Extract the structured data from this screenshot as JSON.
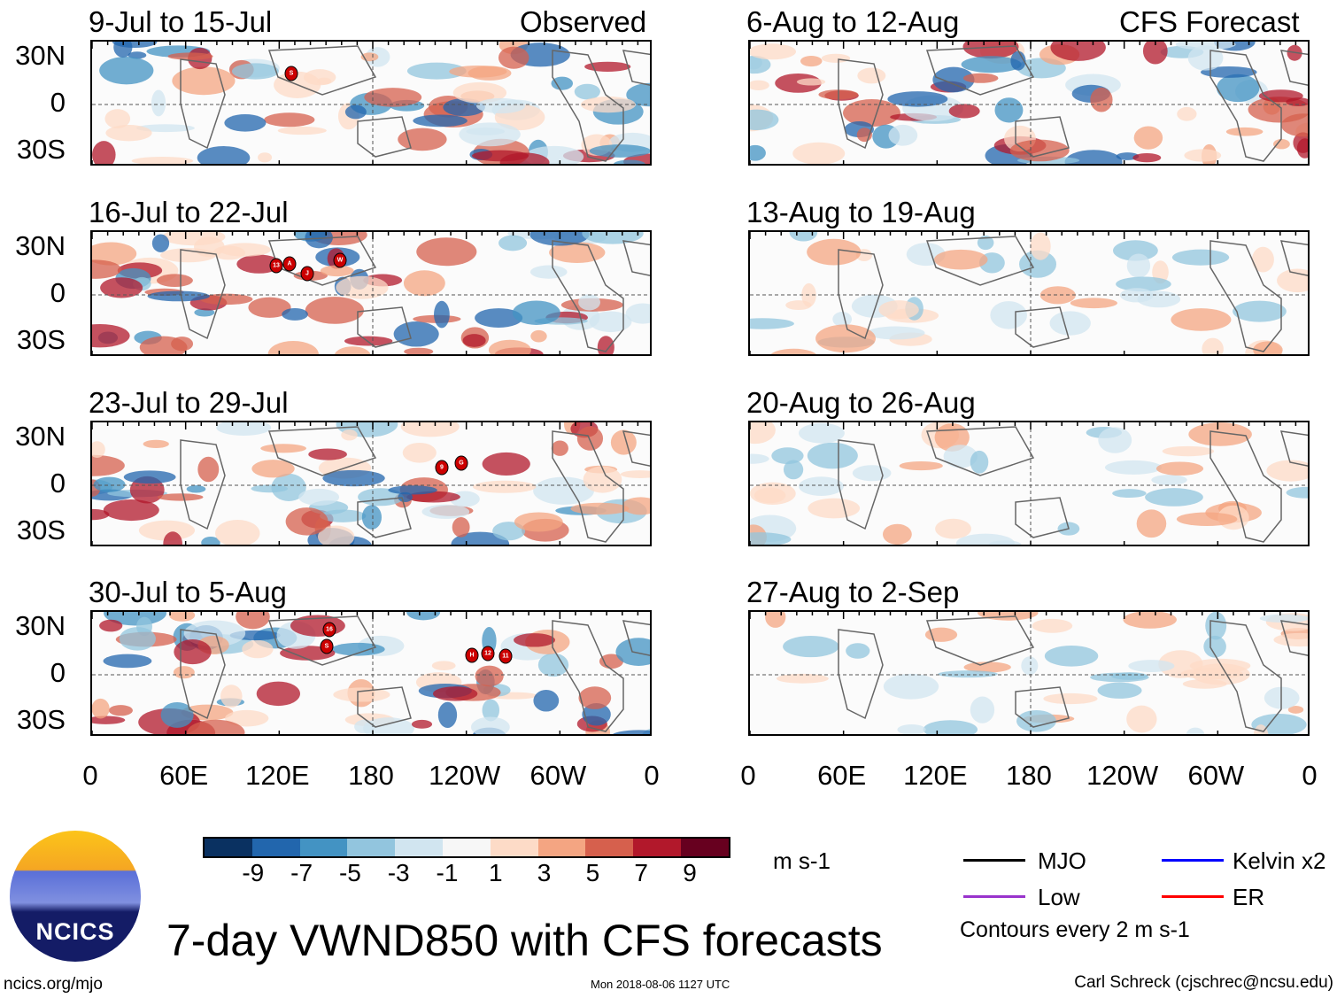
{
  "headers": {
    "observed": "Observed",
    "forecast": "CFS Forecast"
  },
  "panels": [
    {
      "title": "9-Jul to 15-Jul",
      "storms": [
        "S"
      ]
    },
    {
      "title": "16-Jul to 22-Jul",
      "storms": [
        "13",
        "A",
        "J",
        "W"
      ]
    },
    {
      "title": "23-Jul to 29-Jul",
      "storms": [
        "9",
        "G"
      ]
    },
    {
      "title": "30-Jul to 5-Aug",
      "storms": [
        "16",
        "S",
        "H",
        "12",
        "11"
      ]
    },
    {
      "title": "6-Aug to 12-Aug"
    },
    {
      "title": "13-Aug to 19-Aug"
    },
    {
      "title": "20-Aug to 26-Aug"
    },
    {
      "title": "27-Aug to 2-Sep"
    }
  ],
  "lat_labels": [
    "30N",
    "0",
    "30S"
  ],
  "lon_labels": [
    "0",
    "60E",
    "120E",
    "180",
    "120W",
    "60W",
    "0"
  ],
  "colorbar": {
    "labels": [
      "-9",
      "-7",
      "-5",
      "-3",
      "-1",
      "1",
      "3",
      "5",
      "7",
      "9"
    ],
    "units": "m s-1",
    "colors": [
      "#0a3161",
      "#2266ad",
      "#4393c3",
      "#92c5de",
      "#d1e5f0",
      "#f7f7f7",
      "#fddbc7",
      "#f4a582",
      "#d6604d",
      "#b2182b",
      "#67001f"
    ]
  },
  "legend": {
    "mjo": "MJO",
    "kelvin": "Kelvin x2",
    "low": "Low",
    "er": "ER",
    "contours": "Contours every 2 m s-1",
    "colors": {
      "mjo": "#000000",
      "kelvin": "#0000ff",
      "low": "#9933cc",
      "er": "#ff0000"
    }
  },
  "main_title": "7-day VWND850 with CFS forecasts",
  "logo_text": "NCICS",
  "footer": {
    "url": "ncics.org/mjo",
    "timestamp": "Mon 2018-08-06 1127 UTC",
    "author": "Carl Schreck (cjschrec@ncsu.edu)"
  }
}
